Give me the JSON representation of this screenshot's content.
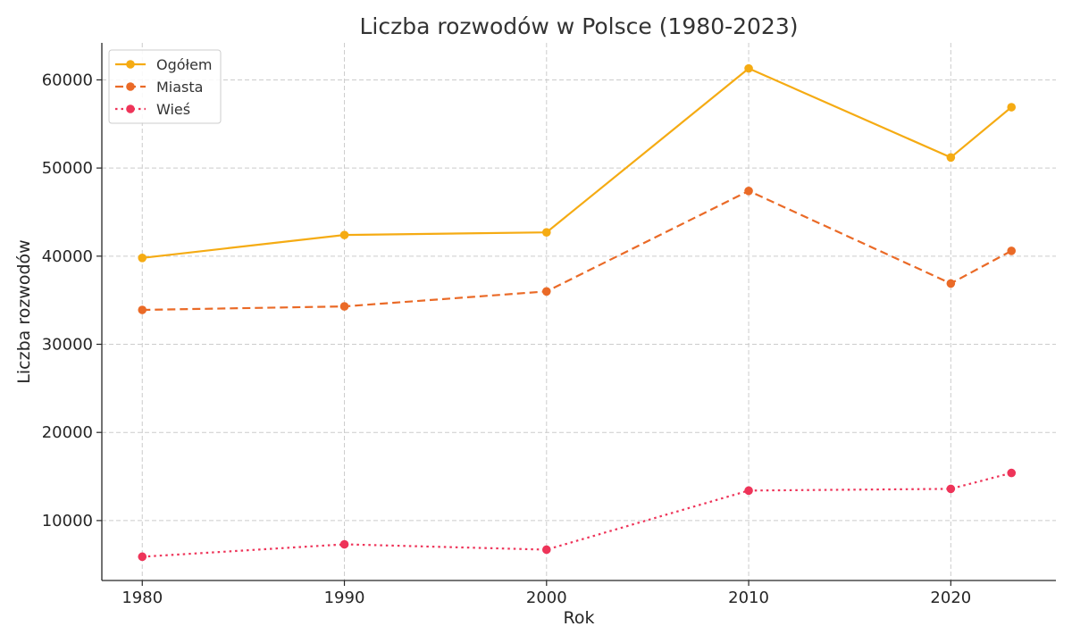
{
  "chart_data": {
    "type": "line",
    "title": "Liczba rozwodów w Polsce (1980-2023)",
    "xlabel": "Rok",
    "ylabel": "Liczba rozwodów",
    "x": [
      1980,
      1990,
      2000,
      2010,
      2020,
      2023
    ],
    "xlim": [
      1978,
      2025.2
    ],
    "ylim": [
      3200,
      64200
    ],
    "xticks": [
      1980,
      1990,
      2000,
      2010,
      2020
    ],
    "yticks": [
      10000,
      20000,
      30000,
      40000,
      50000,
      60000
    ],
    "grid": true,
    "legend_position": "top-left",
    "series": [
      {
        "name": "Ogółem",
        "color": "#f5ab13",
        "dash": "solid",
        "values": [
          39800,
          42400,
          42700,
          61300,
          51200,
          56900
        ]
      },
      {
        "name": "Miasta",
        "color": "#ea6a27",
        "dash": "dashed",
        "values": [
          33900,
          34300,
          36000,
          47400,
          36900,
          40600
        ]
      },
      {
        "name": "Wieś",
        "color": "#ee3459",
        "dash": "dotted",
        "values": [
          5900,
          7300,
          6700,
          13400,
          13600,
          15400
        ]
      }
    ]
  }
}
